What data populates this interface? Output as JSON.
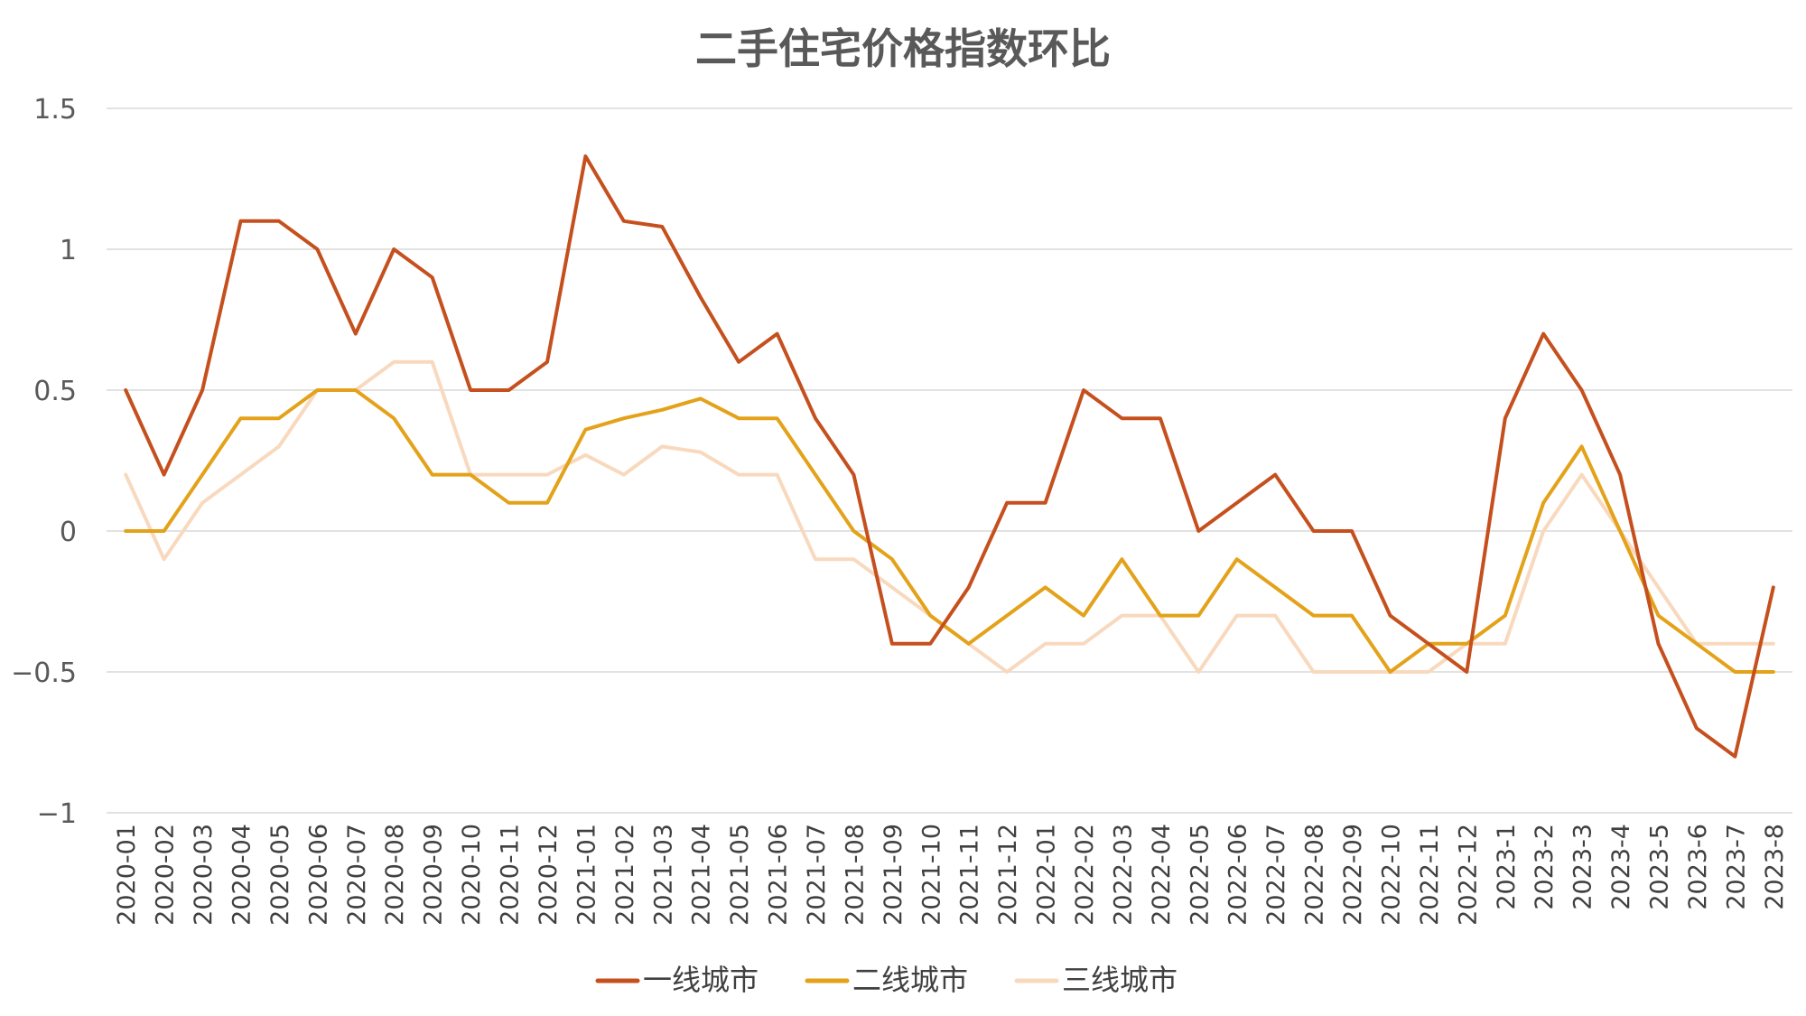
{
  "chart_data": {
    "type": "line",
    "title": "二手住宅价格指数环比",
    "xlabel": "",
    "ylabel": "",
    "ylim": [
      -1,
      1.5
    ],
    "yticks": [
      {
        "value": 1.5,
        "label": "1.5"
      },
      {
        "value": 1,
        "label": "1"
      },
      {
        "value": 0.5,
        "label": "0.5"
      },
      {
        "value": 0,
        "label": "0"
      },
      {
        "value": -0.5,
        "label": "−0.5"
      },
      {
        "value": -1,
        "label": "−1"
      }
    ],
    "grid": true,
    "legend_position": "bottom",
    "categories": [
      "2020-01",
      "2020-02",
      "2020-03",
      "2020-04",
      "2020-05",
      "2020-06",
      "2020-07",
      "2020-08",
      "2020-09",
      "2020-10",
      "2020-11",
      "2020-12",
      "2021-01",
      "2021-02",
      "2021-03",
      "2021-04",
      "2021-05",
      "2021-06",
      "2021-07",
      "2021-08",
      "2021-09",
      "2021-10",
      "2021-11",
      "2021-12",
      "2022-01",
      "2022-02",
      "2022-03",
      "2022-04",
      "2022-05",
      "2022-06",
      "2022-07",
      "2022-08",
      "2022-09",
      "2022-10",
      "2022-11",
      "2022-12",
      "2023-1",
      "2023-2",
      "2023-3",
      "2023-4",
      "2023-5",
      "2023-6",
      "2023-7",
      "2023-8"
    ],
    "series": [
      {
        "name": "一线城市",
        "color": "#C5501E",
        "values": [
          0.5,
          0.2,
          0.5,
          1.1,
          1.1,
          1.0,
          0.7,
          1.0,
          0.9,
          0.5,
          0.5,
          0.6,
          1.33,
          1.1,
          1.08,
          0.83,
          0.6,
          0.7,
          0.4,
          0.2,
          -0.4,
          -0.4,
          -0.2,
          0.1,
          0.1,
          0.5,
          0.4,
          0.4,
          0.0,
          0.1,
          0.2,
          0.0,
          0.0,
          -0.3,
          -0.4,
          -0.5,
          0.4,
          0.7,
          0.5,
          0.2,
          -0.4,
          -0.7,
          -0.8,
          -0.2
        ]
      },
      {
        "name": "二线城市",
        "color": "#E3A21A",
        "values": [
          0.0,
          0.0,
          0.2,
          0.4,
          0.4,
          0.5,
          0.5,
          0.4,
          0.2,
          0.2,
          0.1,
          0.1,
          0.36,
          0.4,
          0.43,
          0.47,
          0.4,
          0.4,
          0.2,
          0.0,
          -0.1,
          -0.3,
          -0.4,
          -0.3,
          -0.2,
          -0.3,
          -0.1,
          -0.3,
          -0.3,
          -0.1,
          -0.2,
          -0.3,
          -0.3,
          -0.5,
          -0.4,
          -0.4,
          -0.3,
          0.1,
          0.3,
          0.0,
          -0.3,
          -0.4,
          -0.5,
          -0.5
        ]
      },
      {
        "name": "三线城市",
        "color": "#F8D9BE",
        "values": [
          0.2,
          -0.1,
          0.1,
          0.2,
          0.3,
          0.5,
          0.5,
          0.6,
          0.6,
          0.2,
          0.2,
          0.2,
          0.27,
          0.2,
          0.3,
          0.28,
          0.2,
          0.2,
          -0.1,
          -0.1,
          -0.2,
          -0.3,
          -0.4,
          -0.5,
          -0.4,
          -0.4,
          -0.3,
          -0.3,
          -0.5,
          -0.3,
          -0.3,
          -0.5,
          -0.5,
          -0.5,
          -0.5,
          -0.4,
          -0.4,
          0.0,
          0.2,
          0.0,
          -0.2,
          -0.4,
          -0.4,
          -0.4
        ]
      }
    ]
  }
}
